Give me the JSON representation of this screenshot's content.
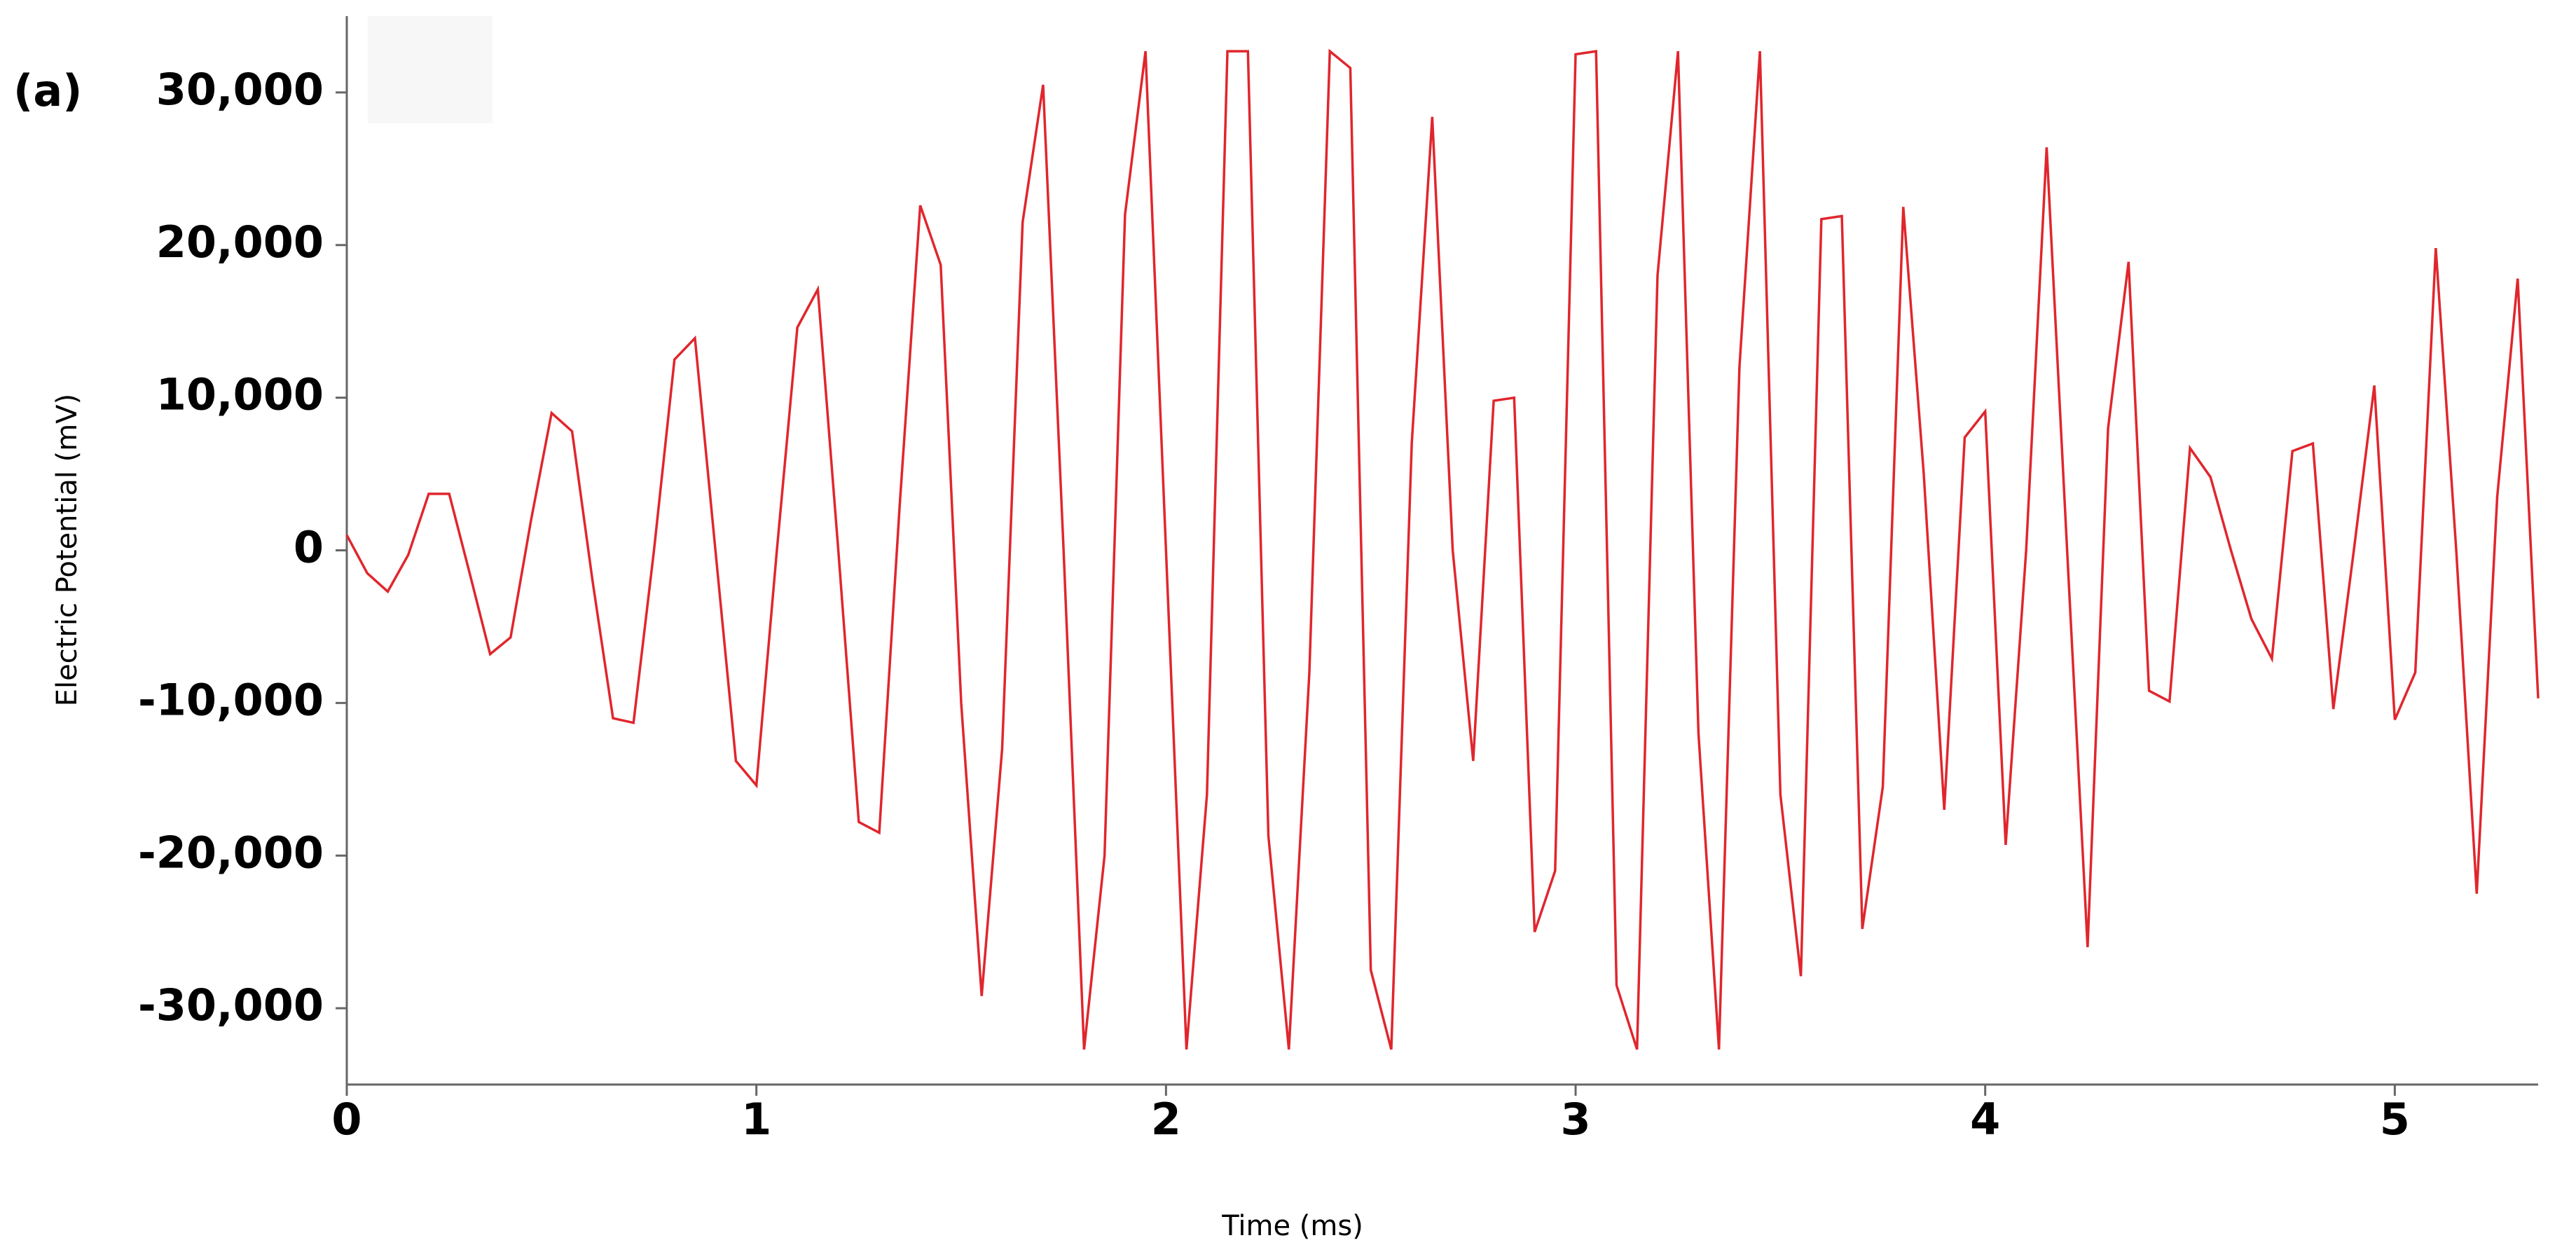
{
  "chart_data": {
    "type": "line",
    "annotation": "(a)",
    "x_label": "Time (ms)",
    "y_label": "Electric Potential (mV)",
    "x": [
      0,
      0.05,
      0.1,
      0.15,
      0.2,
      0.25,
      0.3,
      0.35,
      0.4,
      0.45,
      0.5,
      0.55,
      0.6,
      0.65,
      0.7,
      0.75,
      0.8,
      0.85,
      0.9,
      0.95,
      1.0,
      1.05,
      1.1,
      1.15,
      1.2,
      1.25,
      1.3,
      1.35,
      1.4,
      1.45,
      1.5,
      1.55,
      1.6,
      1.65,
      1.7,
      1.75,
      1.8,
      1.85,
      1.9,
      1.95,
      2.0,
      2.05,
      2.1,
      2.15,
      2.2,
      2.25,
      2.3,
      2.35,
      2.4,
      2.45,
      2.5,
      2.55,
      2.6,
      2.65,
      2.7,
      2.75,
      2.8,
      2.85,
      2.9,
      2.95,
      3.0,
      3.05,
      3.1,
      3.15,
      3.2,
      3.25,
      3.3,
      3.35,
      3.4,
      3.45,
      3.5,
      3.55,
      3.6,
      3.65,
      3.7,
      3.75,
      3.8,
      3.85,
      3.9,
      3.95,
      4.0,
      4.05,
      4.1,
      4.15,
      4.2,
      4.25,
      4.3,
      4.35,
      4.4,
      4.45,
      4.5,
      4.55,
      4.6,
      4.65,
      4.7,
      4.75,
      4.8,
      4.85,
      4.9,
      4.95,
      5.0,
      5.05,
      5.1,
      5.15,
      5.2,
      5.25,
      5.3,
      5.35
    ],
    "series": [
      {
        "color": "#e0262d",
        "values": [
          1000,
          -1500,
          -2700,
          -300,
          3700,
          3700,
          -1500,
          -6800,
          -5700,
          2000,
          9000,
          7800,
          -2000,
          -11000,
          -11300,
          0,
          12500,
          13900,
          0,
          -13800,
          -15400,
          0,
          14600,
          17100,
          0,
          -17800,
          -18500,
          3000,
          22600,
          18700,
          -10000,
          -29200,
          -13000,
          21500,
          30500,
          0,
          -32700,
          -20000,
          22000,
          32700,
          0,
          -32700,
          -16000,
          32700,
          32700,
          -18700,
          -32700,
          -8000,
          32700,
          31600,
          -27500,
          -32700,
          7000,
          28400,
          0,
          -13800,
          9800,
          10000,
          -25000,
          -21000,
          32500,
          32700,
          -28500,
          -32700,
          18000,
          32700,
          -12000,
          -32700,
          12000,
          32700,
          -16000,
          -27900,
          21700,
          21900,
          -24800,
          -15500,
          22500,
          5000,
          -17000,
          7400,
          9100,
          -19300,
          0,
          26400,
          0,
          -26000,
          8000,
          18900,
          -9200,
          -9900,
          6700,
          4800,
          0,
          -4500,
          -7100,
          6500,
          7000,
          -10400,
          0,
          10800,
          -11100,
          -8000,
          19800,
          0,
          -22500,
          3500,
          17800,
          -9700
        ]
      }
    ],
    "xlim": [
      0,
      5.35
    ],
    "ylim": [
      -35000,
      35000
    ],
    "xticks": [
      0,
      1,
      2,
      3,
      4,
      5
    ],
    "yticks": [
      {
        "value": -30000,
        "label": "-30,000"
      },
      {
        "value": -20000,
        "label": "-20,000"
      },
      {
        "value": -10000,
        "label": "-10,000"
      },
      0,
      {
        "value": 10000,
        "label": "10,000"
      },
      {
        "value": 20000,
        "label": "20,000"
      },
      {
        "value": 30000,
        "label": "30,000"
      }
    ],
    "grid": false
  }
}
